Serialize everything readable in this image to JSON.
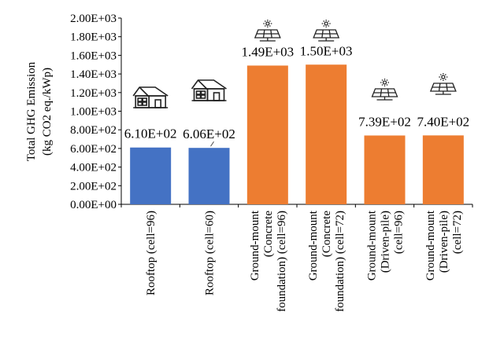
{
  "chart_data": {
    "type": "bar",
    "ylabel_lines": [
      "Total GHG Emission",
      "(kg CO2 eq./kWp)"
    ],
    "ylim": [
      0,
      2000
    ],
    "yticks": [
      0,
      200,
      400,
      600,
      800,
      1000,
      1200,
      1400,
      1600,
      1800,
      2000
    ],
    "ytick_labels": [
      "0.00E+00",
      "2.00E+02",
      "4.00E+02",
      "6.00E+02",
      "8.00E+02",
      "1.00E+03",
      "1.20E+03",
      "1.40E+03",
      "1.60E+03",
      "1.80E+03",
      "2.00E+03"
    ],
    "categories": [
      [
        "Rooftop (cell=96)"
      ],
      [
        "Rooftop (cell=60)"
      ],
      [
        "Ground-mount",
        "(Concrete",
        "foundation) (cell=96)"
      ],
      [
        "Ground-mount",
        "(Concrete",
        "foundation) (cell=72)"
      ],
      [
        "Ground-mount",
        "(Driven-pile)",
        "(cell=96)"
      ],
      [
        "Ground-mount",
        "(Driven-pile)",
        "(cell=72)"
      ]
    ],
    "values": [
      610,
      606,
      1490,
      1500,
      739,
      740
    ],
    "data_labels": [
      "6.10E+02",
      "6.06E+02",
      "1.49E+03",
      "1.50E+03",
      "7.39E+02",
      "7.40E+02"
    ],
    "bar_colors": [
      "#4472c4",
      "#4472c4",
      "#ed7d31",
      "#ed7d31",
      "#ed7d31",
      "#ed7d31"
    ],
    "icons": [
      "house-icon",
      "house-icon",
      "solar-panel-icon",
      "solar-panel-icon",
      "solar-panel-icon",
      "solar-panel-icon"
    ],
    "grid": false,
    "legend": "none"
  }
}
